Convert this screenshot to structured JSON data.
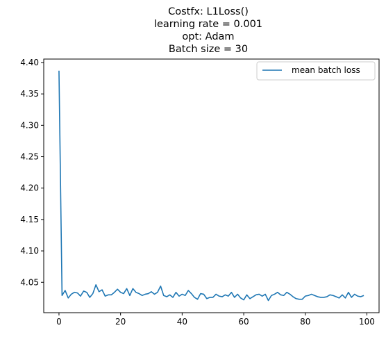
{
  "chart_data": {
    "type": "line",
    "title_lines": [
      "Costfx: L1Loss()",
      "learning rate = 0.001",
      "opt: Adam",
      "Batch size = 30"
    ],
    "xlabel": "",
    "ylabel": "",
    "xlim": [
      -4.95,
      103.95
    ],
    "ylim": [
      4.0016,
      4.4055
    ],
    "xticks": [
      0,
      20,
      40,
      60,
      80,
      100
    ],
    "xtick_labels": [
      "0",
      "20",
      "40",
      "60",
      "80",
      "100"
    ],
    "yticks": [
      4.05,
      4.1,
      4.15,
      4.2,
      4.25,
      4.3,
      4.35,
      4.4
    ],
    "ytick_labels": [
      "4.05",
      "4.10",
      "4.15",
      "4.20",
      "4.25",
      "4.30",
      "4.35",
      "4.40"
    ],
    "grid": false,
    "legend_position": "top-right",
    "series": [
      {
        "name": "mean batch loss",
        "color": "#1f77b4",
        "x": [
          0,
          1,
          2,
          3,
          4,
          5,
          6,
          7,
          8,
          9,
          10,
          11,
          12,
          13,
          14,
          15,
          16,
          17,
          18,
          19,
          20,
          21,
          22,
          23,
          24,
          25,
          26,
          27,
          28,
          29,
          30,
          31,
          32,
          33,
          34,
          35,
          36,
          37,
          38,
          39,
          40,
          41,
          42,
          43,
          44,
          45,
          46,
          47,
          48,
          49,
          50,
          51,
          52,
          53,
          54,
          55,
          56,
          57,
          58,
          59,
          60,
          61,
          62,
          63,
          64,
          65,
          66,
          67,
          68,
          69,
          70,
          71,
          72,
          73,
          74,
          75,
          76,
          77,
          78,
          79,
          80,
          81,
          82,
          83,
          84,
          85,
          86,
          87,
          88,
          89,
          90,
          91,
          92,
          93,
          94,
          95,
          96,
          97,
          98,
          99
        ],
        "y": [
          4.387,
          4.029,
          4.037,
          4.025,
          4.031,
          4.034,
          4.033,
          4.028,
          4.036,
          4.034,
          4.026,
          4.032,
          4.046,
          4.035,
          4.038,
          4.028,
          4.03,
          4.03,
          4.034,
          4.039,
          4.034,
          4.032,
          4.04,
          4.029,
          4.04,
          4.034,
          4.032,
          4.029,
          4.031,
          4.032,
          4.035,
          4.031,
          4.034,
          4.044,
          4.029,
          4.027,
          4.03,
          4.026,
          4.034,
          4.028,
          4.031,
          4.029,
          4.037,
          4.032,
          4.026,
          4.023,
          4.032,
          4.031,
          4.024,
          4.026,
          4.026,
          4.031,
          4.028,
          4.027,
          4.03,
          4.028,
          4.034,
          4.026,
          4.031,
          4.025,
          4.022,
          4.03,
          4.024,
          4.027,
          4.03,
          4.031,
          4.028,
          4.031,
          4.021,
          4.029,
          4.031,
          4.034,
          4.03,
          4.029,
          4.034,
          4.031,
          4.027,
          4.024,
          4.023,
          4.023,
          4.028,
          4.029,
          4.031,
          4.029,
          4.027,
          4.026,
          4.026,
          4.027,
          4.03,
          4.029,
          4.027,
          4.025,
          4.03,
          4.025,
          4.034,
          4.026,
          4.031,
          4.028,
          4.027,
          4.029
        ]
      }
    ]
  }
}
